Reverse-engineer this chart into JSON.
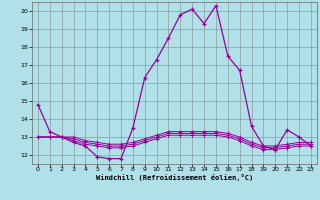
{
  "x": [
    0,
    1,
    2,
    3,
    4,
    5,
    6,
    7,
    8,
    9,
    10,
    11,
    12,
    13,
    14,
    15,
    16,
    17,
    18,
    19,
    20,
    21,
    22,
    23
  ],
  "line1": [
    14.8,
    13.3,
    13.0,
    12.7,
    12.5,
    11.9,
    11.8,
    11.8,
    13.5,
    16.3,
    17.3,
    18.5,
    19.8,
    20.1,
    19.3,
    20.3,
    17.5,
    16.7,
    13.6,
    12.5,
    12.3,
    13.4,
    13.0,
    12.5
  ],
  "line2": [
    13.0,
    13.0,
    13.0,
    12.8,
    12.6,
    12.5,
    12.4,
    12.4,
    12.5,
    12.7,
    12.9,
    13.1,
    13.1,
    13.1,
    13.1,
    13.1,
    13.0,
    12.8,
    12.5,
    12.3,
    12.3,
    12.4,
    12.5,
    12.5
  ],
  "line3": [
    13.0,
    13.0,
    13.0,
    12.9,
    12.7,
    12.6,
    12.5,
    12.5,
    12.6,
    12.8,
    13.0,
    13.2,
    13.2,
    13.2,
    13.2,
    13.2,
    13.1,
    12.9,
    12.6,
    12.4,
    12.4,
    12.5,
    12.6,
    12.6
  ],
  "line4": [
    13.0,
    13.0,
    13.0,
    13.0,
    12.8,
    12.7,
    12.6,
    12.6,
    12.7,
    12.9,
    13.1,
    13.3,
    13.3,
    13.3,
    13.3,
    13.3,
    13.2,
    13.0,
    12.7,
    12.5,
    12.5,
    12.6,
    12.7,
    12.7
  ],
  "ylim": [
    11.5,
    20.5
  ],
  "xlim": [
    -0.5,
    23.5
  ],
  "yticks": [
    12,
    13,
    14,
    15,
    16,
    17,
    18,
    19,
    20
  ],
  "xticks": [
    0,
    1,
    2,
    3,
    4,
    5,
    6,
    7,
    8,
    9,
    10,
    11,
    12,
    13,
    14,
    15,
    16,
    17,
    18,
    19,
    20,
    21,
    22,
    23
  ],
  "xlabel": "Windchill (Refroidissement éolien,°C)",
  "line_color": "#990099",
  "bg_color": "#b0e0e8",
  "grid_color": "#888888"
}
